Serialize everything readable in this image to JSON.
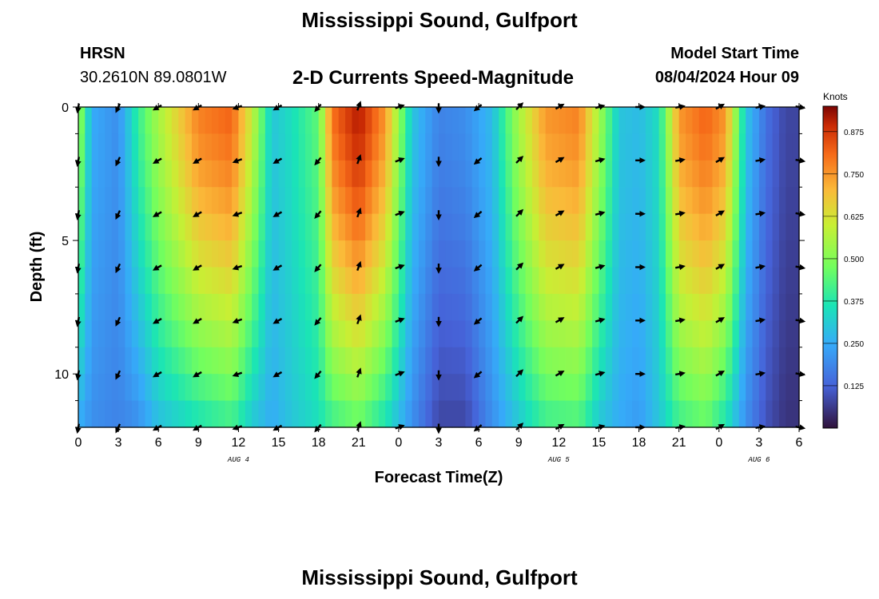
{
  "page": {
    "title": "Mississippi Sound, Gulfport",
    "station": "HRSN",
    "coordinates": "30.2610N  89.0801W",
    "subtitle": "2-D Currents Speed-Magnitude",
    "model_start_label": "Model Start Time",
    "model_start_value": "08/04/2024 Hour 09",
    "bottom_title": "Mississippi Sound, Gulfport"
  },
  "chart_data": {
    "type": "heatmap",
    "title": "2-D Currents Speed-Magnitude",
    "xlabel": "Forecast Time(Z)",
    "ylabel": "Depth (ft)",
    "x_range_hours": [
      0,
      54
    ],
    "x_tick_labels": [
      "0",
      "3",
      "6",
      "9",
      "12",
      "15",
      "18",
      "21",
      "0",
      "3",
      "6",
      "9",
      "12",
      "15",
      "18",
      "21",
      "0",
      "3",
      "6"
    ],
    "date_labels": [
      {
        "text": "AUG 4",
        "hour": 12
      },
      {
        "text": "AUG 5",
        "hour": 36
      },
      {
        "text": "AUG 6",
        "hour": 51
      }
    ],
    "ylim": [
      0,
      12
    ],
    "y_ticks": [
      0,
      5,
      10
    ],
    "y_tick_labels": [
      "0",
      "5",
      "10"
    ],
    "colorbar": {
      "label": "Knots",
      "range": [
        0,
        0.95
      ],
      "ticks": [
        0.125,
        0.25,
        0.375,
        0.5,
        0.625,
        0.75,
        0.875
      ],
      "tick_labels": [
        "0.125",
        "0.250",
        "0.375",
        "0.500",
        "0.625",
        "0.750",
        "0.875"
      ]
    },
    "speed_profile_hours": [
      0,
      1,
      3,
      4.5,
      6,
      9,
      11.5,
      13,
      14.5,
      16,
      18,
      19,
      21,
      23,
      25,
      27,
      29,
      31,
      33,
      35,
      37.5,
      39,
      40.5,
      42,
      43.5,
      45,
      47,
      48.5,
      50,
      51.5,
      53,
      54
    ],
    "speed_surface_knots": [
      0.55,
      0.25,
      0.2,
      0.4,
      0.55,
      0.78,
      0.82,
      0.6,
      0.3,
      0.35,
      0.45,
      0.8,
      0.92,
      0.75,
      0.3,
      0.18,
      0.2,
      0.28,
      0.55,
      0.75,
      0.78,
      0.55,
      0.3,
      0.28,
      0.35,
      0.75,
      0.82,
      0.75,
      0.3,
      0.15,
      0.08,
      0.08
    ],
    "speed_bottom_knots": [
      0.25,
      0.2,
      0.18,
      0.2,
      0.28,
      0.35,
      0.4,
      0.3,
      0.25,
      0.3,
      0.35,
      0.4,
      0.45,
      0.35,
      0.2,
      0.08,
      0.08,
      0.2,
      0.3,
      0.4,
      0.42,
      0.3,
      0.25,
      0.22,
      0.3,
      0.4,
      0.45,
      0.35,
      0.2,
      0.1,
      0.05,
      0.05
    ],
    "arrow_hours": [
      0,
      3,
      6,
      9,
      12,
      15,
      18,
      21,
      24,
      27,
      30,
      33,
      36,
      39,
      42,
      45,
      48,
      51,
      54
    ],
    "arrow_depths_ft": [
      0,
      2,
      4,
      6,
      8,
      10,
      12
    ],
    "arrow_directions_deg": [
      190,
      205,
      240,
      240,
      250,
      240,
      220,
      20,
      70,
      180,
      230,
      45,
      60,
      75,
      90,
      80,
      60,
      80,
      100
    ]
  }
}
